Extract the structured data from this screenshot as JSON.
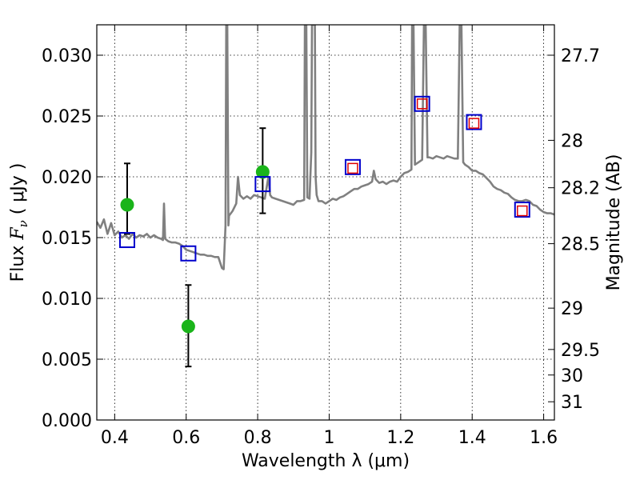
{
  "chart_data": {
    "type": "scatter",
    "xlabel": "Wavelength  λ (μm)",
    "ylabel": {
      "prefix": "Flux  ",
      "symbol": "F",
      "subscript": "ν",
      "unit": "  ( μJy )"
    },
    "y2label": "Magnitude (AB)",
    "xlim": [
      0.35,
      1.63
    ],
    "ylim": [
      0.0,
      0.0325
    ],
    "grid": true,
    "x_ticks": [
      0.4,
      0.6,
      0.8,
      1.0,
      1.2,
      1.4,
      1.6
    ],
    "x_tick_labels": [
      "0.4",
      "0.6",
      "0.8",
      "1",
      "1.2",
      "1.4",
      "1.6"
    ],
    "y_ticks": [
      0.0,
      0.005,
      0.01,
      0.015,
      0.02,
      0.025,
      0.03
    ],
    "y_tick_labels": [
      "0.000",
      "0.005",
      "0.010",
      "0.015",
      "0.020",
      "0.025",
      "0.030"
    ],
    "y2_ticks": [
      {
        "label": "27.7",
        "flux": 0.03
      },
      {
        "label": "28",
        "flux": 0.023
      },
      {
        "label": "28.2",
        "flux": 0.0191
      },
      {
        "label": "28.5",
        "flux": 0.0145
      },
      {
        "label": "29",
        "flux": 0.0092
      },
      {
        "label": "29.5",
        "flux": 0.0058
      },
      {
        "label": "30",
        "flux": 0.0037
      },
      {
        "label": "31",
        "flux": 0.0015
      }
    ],
    "colors": {
      "spectrum": "#808080",
      "green": "#1ab41a",
      "blue": "#0000cc",
      "red": "#e00000",
      "error": "#000000"
    },
    "series": [
      {
        "name": "model spectrum",
        "kind": "line",
        "points": [
          [
            0.35,
            0.0163
          ],
          [
            0.36,
            0.0158
          ],
          [
            0.37,
            0.0165
          ],
          [
            0.38,
            0.0153
          ],
          [
            0.39,
            0.0162
          ],
          [
            0.4,
            0.0152
          ],
          [
            0.41,
            0.0155
          ],
          [
            0.42,
            0.015
          ],
          [
            0.43,
            0.0152
          ],
          [
            0.44,
            0.0149
          ],
          [
            0.45,
            0.0153
          ],
          [
            0.46,
            0.015
          ],
          [
            0.47,
            0.0152
          ],
          [
            0.48,
            0.0151
          ],
          [
            0.49,
            0.0153
          ],
          [
            0.5,
            0.015
          ],
          [
            0.51,
            0.0152
          ],
          [
            0.52,
            0.015
          ],
          [
            0.53,
            0.0149
          ],
          [
            0.535,
            0.0148
          ],
          [
            0.538,
            0.0178
          ],
          [
            0.541,
            0.0149
          ],
          [
            0.55,
            0.0147
          ],
          [
            0.56,
            0.0146
          ],
          [
            0.57,
            0.0146
          ],
          [
            0.58,
            0.0145
          ],
          [
            0.59,
            0.0143
          ],
          [
            0.6,
            0.014
          ],
          [
            0.61,
            0.0139
          ],
          [
            0.62,
            0.0138
          ],
          [
            0.63,
            0.0137
          ],
          [
            0.64,
            0.0136
          ],
          [
            0.65,
            0.0136
          ],
          [
            0.66,
            0.0135
          ],
          [
            0.67,
            0.0135
          ],
          [
            0.68,
            0.0134
          ],
          [
            0.69,
            0.0134
          ],
          [
            0.7,
            0.0125
          ],
          [
            0.705,
            0.0124
          ],
          [
            0.71,
            0.016
          ],
          [
            0.712,
            0.0325
          ],
          [
            0.715,
            0.0325
          ],
          [
            0.718,
            0.016
          ],
          [
            0.72,
            0.0168
          ],
          [
            0.73,
            0.0172
          ],
          [
            0.74,
            0.0178
          ],
          [
            0.745,
            0.02
          ],
          [
            0.75,
            0.0185
          ],
          [
            0.76,
            0.0182
          ],
          [
            0.77,
            0.0184
          ],
          [
            0.78,
            0.0182
          ],
          [
            0.79,
            0.0185
          ],
          [
            0.8,
            0.0184
          ],
          [
            0.81,
            0.0183
          ],
          [
            0.82,
            0.0182
          ],
          [
            0.83,
            0.02
          ],
          [
            0.835,
            0.0185
          ],
          [
            0.84,
            0.0183
          ],
          [
            0.85,
            0.0182
          ],
          [
            0.86,
            0.0181
          ],
          [
            0.87,
            0.018
          ],
          [
            0.88,
            0.0179
          ],
          [
            0.89,
            0.0178
          ],
          [
            0.9,
            0.0177
          ],
          [
            0.91,
            0.018
          ],
          [
            0.92,
            0.018
          ],
          [
            0.93,
            0.0181
          ],
          [
            0.932,
            0.0325
          ],
          [
            0.936,
            0.0325
          ],
          [
            0.939,
            0.0183
          ],
          [
            0.945,
            0.0182
          ],
          [
            0.95,
            0.022
          ],
          [
            0.952,
            0.0325
          ],
          [
            0.96,
            0.0325
          ],
          [
            0.962,
            0.02
          ],
          [
            0.965,
            0.0185
          ],
          [
            0.97,
            0.018
          ],
          [
            0.98,
            0.018
          ],
          [
            0.99,
            0.0178
          ],
          [
            1.0,
            0.018
          ],
          [
            1.01,
            0.0182
          ],
          [
            1.02,
            0.0181
          ],
          [
            1.03,
            0.0183
          ],
          [
            1.04,
            0.0184
          ],
          [
            1.05,
            0.0186
          ],
          [
            1.06,
            0.0188
          ],
          [
            1.07,
            0.019
          ],
          [
            1.08,
            0.019
          ],
          [
            1.09,
            0.0192
          ],
          [
            1.1,
            0.0193
          ],
          [
            1.11,
            0.0194
          ],
          [
            1.12,
            0.0196
          ],
          [
            1.125,
            0.0205
          ],
          [
            1.13,
            0.0198
          ],
          [
            1.14,
            0.0195
          ],
          [
            1.15,
            0.0196
          ],
          [
            1.16,
            0.0194
          ],
          [
            1.17,
            0.0196
          ],
          [
            1.18,
            0.0197
          ],
          [
            1.19,
            0.0196
          ],
          [
            1.2,
            0.02
          ],
          [
            1.21,
            0.0203
          ],
          [
            1.22,
            0.0204
          ],
          [
            1.23,
            0.0206
          ],
          [
            1.232,
            0.0325
          ],
          [
            1.236,
            0.0325
          ],
          [
            1.24,
            0.021
          ],
          [
            1.25,
            0.0212
          ],
          [
            1.26,
            0.0214
          ],
          [
            1.265,
            0.0325
          ],
          [
            1.27,
            0.0325
          ],
          [
            1.275,
            0.0216
          ],
          [
            1.28,
            0.0216
          ],
          [
            1.29,
            0.0215
          ],
          [
            1.3,
            0.0217
          ],
          [
            1.31,
            0.0216
          ],
          [
            1.32,
            0.0215
          ],
          [
            1.33,
            0.0217
          ],
          [
            1.34,
            0.0216
          ],
          [
            1.35,
            0.0215
          ],
          [
            1.36,
            0.0215
          ],
          [
            1.365,
            0.0325
          ],
          [
            1.37,
            0.0325
          ],
          [
            1.375,
            0.0212
          ],
          [
            1.38,
            0.021
          ],
          [
            1.39,
            0.0208
          ],
          [
            1.4,
            0.0205
          ],
          [
            1.41,
            0.0205
          ],
          [
            1.42,
            0.0203
          ],
          [
            1.43,
            0.0202
          ],
          [
            1.44,
            0.0199
          ],
          [
            1.45,
            0.0196
          ],
          [
            1.46,
            0.0192
          ],
          [
            1.47,
            0.019
          ],
          [
            1.48,
            0.0189
          ],
          [
            1.49,
            0.0187
          ],
          [
            1.5,
            0.0186
          ],
          [
            1.51,
            0.0183
          ],
          [
            1.52,
            0.0181
          ],
          [
            1.53,
            0.018
          ],
          [
            1.54,
            0.018
          ],
          [
            1.55,
            0.0181
          ],
          [
            1.56,
            0.018
          ],
          [
            1.57,
            0.0177
          ],
          [
            1.58,
            0.0176
          ],
          [
            1.59,
            0.0173
          ],
          [
            1.6,
            0.0171
          ],
          [
            1.61,
            0.017
          ],
          [
            1.62,
            0.017
          ],
          [
            1.63,
            0.0169
          ]
        ]
      },
      {
        "name": "observed photometry",
        "kind": "point",
        "marker": "circle",
        "points": [
          {
            "x": 0.435,
            "y": 0.0177,
            "err_low": 0.0153,
            "err_high": 0.0211
          },
          {
            "x": 0.606,
            "y": 0.0077,
            "err_low": 0.0044,
            "err_high": 0.0111
          },
          {
            "x": 0.814,
            "y": 0.0204,
            "err_low": 0.017,
            "err_high": 0.024
          }
        ]
      },
      {
        "name": "model photometry (blue)",
        "kind": "point",
        "marker": "square",
        "points": [
          [
            0.435,
            0.0148
          ],
          [
            0.606,
            0.0137
          ],
          [
            0.814,
            0.0194
          ],
          [
            1.066,
            0.0208
          ],
          [
            1.26,
            0.026
          ],
          [
            1.405,
            0.0245
          ],
          [
            1.54,
            0.0173
          ]
        ]
      },
      {
        "name": "model photometry (red)",
        "kind": "point",
        "marker": "square",
        "points": [
          [
            1.066,
            0.0207
          ],
          [
            1.26,
            0.026
          ],
          [
            1.405,
            0.0244
          ],
          [
            1.54,
            0.0172
          ]
        ]
      }
    ]
  }
}
